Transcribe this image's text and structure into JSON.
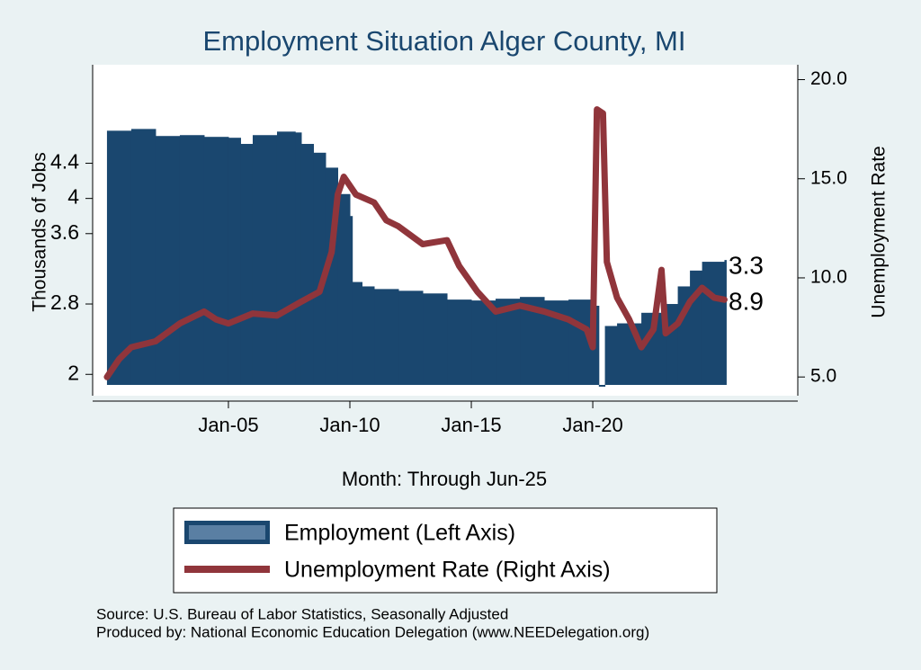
{
  "chart_data": {
    "type": "combo",
    "title": "Employment Situation Alger  County, MI",
    "x_label": "Month: Through Jun-25",
    "y_label": "Thousands of Jobs",
    "y2_label": "Unemployment Rate",
    "source": "Source: U.S. Bureau of Labor Statistics, Seasonally Adjusted",
    "producer": "Produced by: National Economic Education Delegation (www.NEEDelegation.org)",
    "xlim": [
      1999.41,
      2028.44
    ],
    "xticks": [
      {
        "value": 2005,
        "label": "Jan-05"
      },
      {
        "value": 2010,
        "label": "Jan-10"
      },
      {
        "value": 2015,
        "label": "Jan-15"
      },
      {
        "value": 2020,
        "label": "Jan-20"
      }
    ],
    "ylim": [
      1.88,
      5.52
    ],
    "yticks": [
      2.0,
      2.8,
      3.6,
      4.0,
      4.4
    ],
    "y2lim": [
      4.6,
      20.75
    ],
    "y2ticks": [
      {
        "value": 5,
        "label": "5.0"
      },
      {
        "value": 10,
        "label": "10.0"
      },
      {
        "value": 15,
        "label": "15.0"
      },
      {
        "value": 20,
        "label": "20.0"
      }
    ],
    "series": [
      {
        "name": "Employment (Left Axis)",
        "type": "bar",
        "color": "#1a476f",
        "x": [
          2000.0,
          2001.0,
          2002.0,
          2003.0,
          2004.0,
          2005.0,
          2005.5,
          2006.0,
          2007.0,
          2007.75,
          2008.0,
          2008.5,
          2009.0,
          2009.5,
          2010.0,
          2010.1,
          2010.5,
          2011.0,
          2012.0,
          2013.0,
          2014.0,
          2015.0,
          2016.0,
          2017.0,
          2018.0,
          2019.0,
          2020.0,
          2020.25,
          2020.5,
          2021.0,
          2022.0,
          2023.0,
          2023.5,
          2024.0,
          2024.5,
          2025.42
        ],
        "values": [
          4.77,
          4.79,
          4.71,
          4.72,
          4.7,
          4.69,
          4.62,
          4.72,
          4.76,
          4.75,
          4.62,
          4.52,
          4.35,
          4.05,
          3.8,
          3.05,
          3.0,
          2.97,
          2.95,
          2.92,
          2.85,
          2.84,
          2.86,
          2.88,
          2.84,
          2.85,
          2.78,
          1.86,
          2.55,
          2.58,
          2.7,
          2.8,
          3.0,
          3.18,
          3.28,
          3.3
        ]
      },
      {
        "name": "Unemployment Rate (Right Axis)",
        "type": "line",
        "axis": "y2",
        "color": "#90353b",
        "x": [
          2000.0,
          2000.5,
          2001.0,
          2002.0,
          2003.0,
          2004.0,
          2004.5,
          2005.0,
          2006.0,
          2007.0,
          2008.0,
          2008.75,
          2009.25,
          2009.5,
          2009.75,
          2010.25,
          2011.0,
          2011.5,
          2012.0,
          2013.0,
          2014.0,
          2014.5,
          2015.25,
          2016.0,
          2017.0,
          2018.0,
          2019.0,
          2019.75,
          2020.0,
          2020.17,
          2020.42,
          2020.58,
          2021.0,
          2021.5,
          2022.0,
          2022.5,
          2022.83,
          2023.0,
          2023.5,
          2024.0,
          2024.5,
          2025.0,
          2025.42
        ],
        "values": [
          5.0,
          5.9,
          6.5,
          6.8,
          7.7,
          8.3,
          7.9,
          7.7,
          8.2,
          8.1,
          8.8,
          9.3,
          11.3,
          14.2,
          15.1,
          14.2,
          13.8,
          12.9,
          12.6,
          11.7,
          11.9,
          10.6,
          9.3,
          8.3,
          8.6,
          8.3,
          7.9,
          7.4,
          6.5,
          18.5,
          18.3,
          10.8,
          9.0,
          7.9,
          6.5,
          7.4,
          10.4,
          7.2,
          7.7,
          8.8,
          9.5,
          9.0,
          8.9
        ]
      }
    ]
  }
}
